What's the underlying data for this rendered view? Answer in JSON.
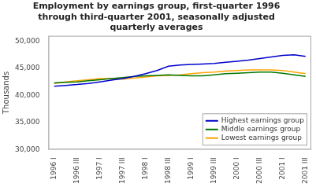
{
  "chart_data": {
    "type": "line",
    "title": "Employment by earnings group, first-quarter 1996\nthrough third-quarter 2001, seasonally adjusted\nquarterly averages",
    "ylabel": "Thousands",
    "categories": [
      "1996 I",
      null,
      "1996 III",
      null,
      "1997 I",
      null,
      "1997 III",
      null,
      "1998 I",
      null,
      "1998 III",
      null,
      "1999 I",
      null,
      "1999 III",
      null,
      "2000 I",
      null,
      "2000 III",
      null,
      "2001 I",
      null,
      "2001 III"
    ],
    "series": [
      {
        "name": "Highest earnings group",
        "color": "#0000CC",
        "values": [
          41700,
          41850,
          42000,
          42200,
          42500,
          42800,
          43100,
          43500,
          44000,
          44600,
          45400,
          45600,
          45700,
          45800,
          45900,
          46100,
          46300,
          46500,
          46800,
          47100,
          47400,
          47500,
          47200
        ]
      },
      {
        "name": "Middle earnings group",
        "color": "#007700",
        "values": [
          42300,
          42400,
          42500,
          42700,
          42900,
          43100,
          43300,
          43500,
          43600,
          43700,
          43800,
          43700,
          43600,
          43600,
          43800,
          44000,
          44100,
          44200,
          44300,
          44300,
          44100,
          43800,
          43500
        ]
      },
      {
        "name": "Lowest earnings group",
        "color": "#FFA500",
        "values": [
          42200,
          42500,
          42700,
          42900,
          43100,
          43100,
          43000,
          43200,
          43400,
          43600,
          43700,
          43800,
          44000,
          44200,
          44300,
          44500,
          44600,
          44700,
          44700,
          44700,
          44600,
          44300,
          44000
        ]
      }
    ],
    "ylim": [
      30000,
      51000
    ],
    "yticks": [
      {
        "value": 30000,
        "label": "30,000"
      },
      {
        "value": 35000,
        "label": "35,000"
      },
      {
        "value": 40000,
        "label": "40,000"
      },
      {
        "value": 45000,
        "label": "45,000"
      },
      {
        "value": 50000,
        "label": "50,000"
      }
    ],
    "grid": false,
    "legend": "lower right"
  }
}
